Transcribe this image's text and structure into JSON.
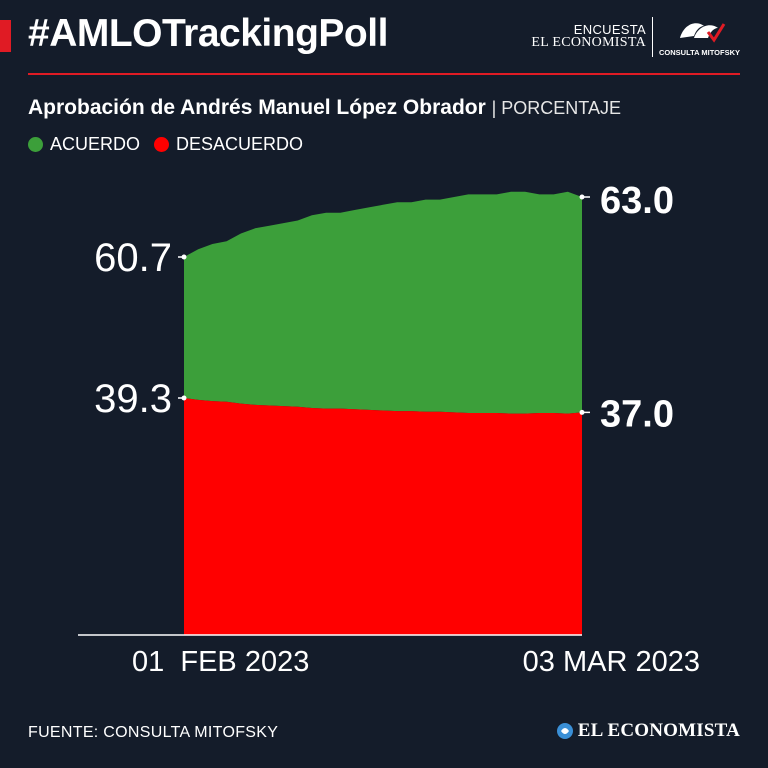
{
  "header": {
    "hashtag": "#AMLOTrackingPoll",
    "survey_label": "ENCUESTA",
    "newspaper_label": "EL ECONOMISTA",
    "partner_label": "CONSULTA MITOFSKY",
    "accent_color": "#e01b24"
  },
  "footer": {
    "source": "FUENTE: CONSULTA MITOFSKY",
    "brand": "EL ECONOMISTA"
  },
  "chart_data": {
    "type": "area",
    "title": "Aprobación de Andrés Manuel López Obrador",
    "unit_label": "| PORCENTAJE",
    "x_start_label": "01  FEB 2023",
    "x_end_label": "03 MAR 2023",
    "ylim": [
      0,
      100
    ],
    "grid": false,
    "stacked": true,
    "series": [
      {
        "name": "ACUERDO",
        "color": "#3c9f3a",
        "start_label": "60.7",
        "end_label": "63.0",
        "values": [
          60.7,
          61.0,
          61.2,
          61.3,
          61.6,
          61.8,
          61.9,
          62.0,
          62.1,
          62.3,
          62.4,
          62.4,
          62.5,
          62.6,
          62.7,
          62.8,
          62.8,
          62.9,
          62.9,
          63.0,
          63.1,
          63.1,
          63.1,
          63.2,
          63.2,
          63.1,
          63.1,
          63.2,
          63.0
        ]
      },
      {
        "name": "DESACUERDO",
        "color": "#ff0000",
        "start_label": "39.3",
        "end_label": "37.0",
        "values": [
          39.3,
          39.0,
          38.8,
          38.7,
          38.4,
          38.2,
          38.1,
          38.0,
          37.9,
          37.7,
          37.6,
          37.6,
          37.5,
          37.4,
          37.3,
          37.2,
          37.2,
          37.1,
          37.1,
          37.0,
          36.9,
          36.9,
          36.9,
          36.8,
          36.8,
          36.9,
          36.9,
          36.8,
          37.0
        ]
      }
    ]
  }
}
